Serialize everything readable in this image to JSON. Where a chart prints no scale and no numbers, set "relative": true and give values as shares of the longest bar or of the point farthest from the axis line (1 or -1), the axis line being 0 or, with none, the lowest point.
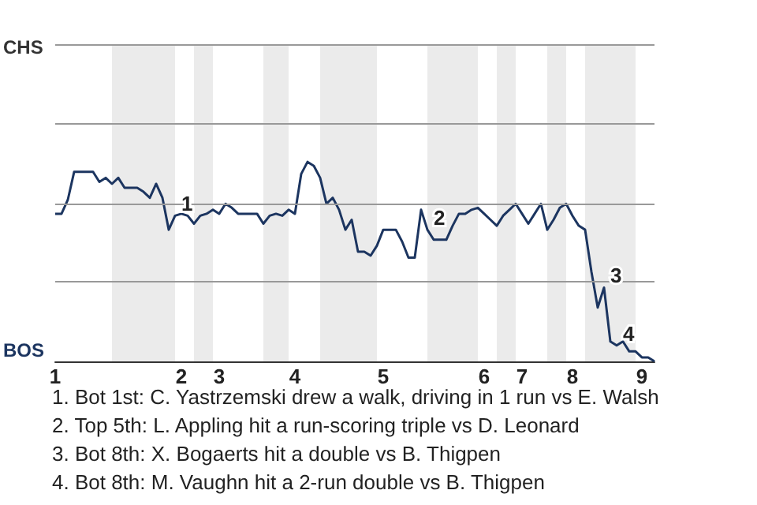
{
  "chart_data": {
    "type": "line",
    "relative": true,
    "categories": [
      "1",
      null,
      null,
      null,
      null,
      null,
      null,
      null,
      null,
      null,
      null,
      null,
      null,
      null,
      null,
      null,
      null,
      null,
      null,
      null,
      "2",
      null,
      null,
      null,
      null,
      null,
      "3",
      null,
      null,
      null,
      null,
      null,
      null,
      null,
      null,
      null,
      null,
      null,
      "4",
      null,
      null,
      null,
      null,
      null,
      null,
      null,
      null,
      null,
      null,
      null,
      null,
      null,
      "5",
      null,
      null,
      null,
      null,
      null,
      null,
      null,
      null,
      null,
      null,
      null,
      null,
      null,
      null,
      null,
      "6",
      null,
      null,
      null,
      null,
      null,
      "7",
      null,
      null,
      null,
      null,
      null,
      null,
      null,
      "8",
      null,
      null,
      null,
      null,
      null,
      null,
      null,
      null,
      null,
      null,
      "9",
      null,
      null
    ],
    "series": [
      {
        "color": "#1c3560",
        "values": [
          0.74,
          0.74,
          0.81,
          0.95,
          0.95,
          0.95,
          0.95,
          0.9,
          0.92,
          0.89,
          0.92,
          0.87,
          0.87,
          0.87,
          0.85,
          0.82,
          0.89,
          0.82,
          0.66,
          0.73,
          0.74,
          0.73,
          0.69,
          0.73,
          0.74,
          0.76,
          0.74,
          0.79,
          0.77,
          0.74,
          0.74,
          0.74,
          0.74,
          0.69,
          0.73,
          0.74,
          0.73,
          0.76,
          0.74,
          0.94,
          1,
          0.98,
          0.92,
          0.79,
          0.82,
          0.76,
          0.66,
          0.71,
          0.55,
          0.55,
          0.53,
          0.58,
          0.66,
          0.66,
          0.66,
          0.6,
          0.52,
          0.52,
          0.76,
          0.66,
          0.61,
          0.61,
          0.61,
          0.68,
          0.74,
          0.74,
          0.76,
          0.77,
          0.74,
          0.71,
          0.68,
          0.73,
          0.76,
          0.79,
          0.74,
          0.69,
          0.74,
          0.79,
          0.66,
          0.71,
          0.77,
          0.79,
          0.73,
          0.68,
          0.66,
          0.45,
          0.27,
          0.37,
          0.1,
          0.08,
          0.1,
          0.05,
          0.05,
          0.02,
          0.02,
          0
        ]
      }
    ],
    "marker": "none",
    "line_style": "solid",
    "ref_lines": [
      {
        "axis": "y",
        "value": 0.4,
        "color": "#999999"
      },
      {
        "axis": "y",
        "value": 0.79,
        "color": "#999999"
      },
      {
        "axis": "y",
        "value": 1.19,
        "color": "#999999"
      },
      {
        "axis": "y",
        "value": 1.59,
        "color": "#999999"
      }
    ],
    "annotations": [
      "CHS",
      "BOS",
      "1",
      "2",
      "3",
      "4",
      "1. Bot 1st: C. Yastrzemski drew a walk, driving in 1 run vs E. Walsh",
      "2. Top 5th: L. Appling hit a run-scoring triple vs D. Leonard",
      "3. Bot 8th: X. Bogaerts hit a double vs B. Thigpen",
      "4. Bot 8th: M. Vaughn hit a 2-run double vs B. Thigpen"
    ]
  }
}
